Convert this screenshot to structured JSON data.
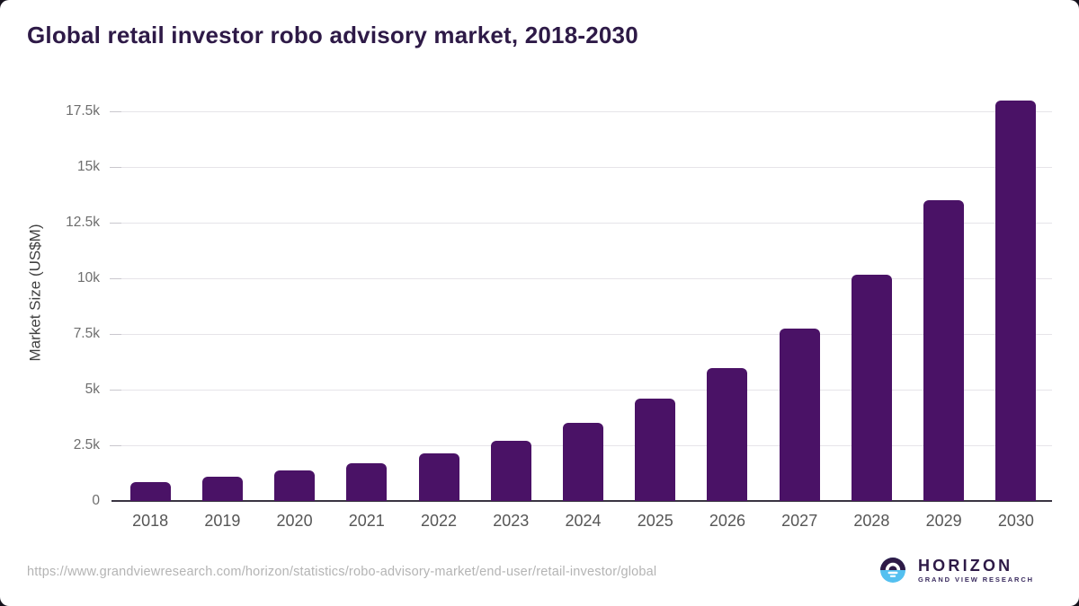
{
  "page": {
    "title": "Global retail investor robo advisory market, 2018-2030"
  },
  "chart_data": {
    "type": "bar",
    "title": "Global retail investor robo advisory market, 2018-2030",
    "categories": [
      "2018",
      "2019",
      "2020",
      "2021",
      "2022",
      "2023",
      "2024",
      "2025",
      "2026",
      "2027",
      "2028",
      "2029",
      "2030"
    ],
    "values": [
      850,
      1080,
      1370,
      1680,
      2150,
      2700,
      3500,
      4600,
      5950,
      7750,
      10150,
      13500,
      18000
    ],
    "units": "US$M",
    "xlabel": "",
    "ylabel": "Market Size (US$M)",
    "ylim": [
      0,
      18750
    ],
    "ytick_values": [
      0,
      2500,
      5000,
      7500,
      10000,
      12500,
      15000,
      17500
    ],
    "ytick_labels": [
      "0",
      "2.5k",
      "5k",
      "7.5k",
      "10k",
      "12.5k",
      "15k",
      "17.5k"
    ],
    "grid": true,
    "legend": false,
    "bar_color": "#4a1266"
  },
  "footer": {
    "source_url": "https://www.grandviewresearch.com/horizon/statistics/robo-advisory-market/end-user/retail-investor/global",
    "brand": {
      "name": "HORIZON",
      "tagline": "GRAND VIEW RESEARCH",
      "logo_icon": "horizon-sunrise-icon",
      "logo_top_color": "#2e1a47",
      "logo_bottom_color": "#54c0f0"
    }
  },
  "colors": {
    "background": "#ffffff",
    "title": "#2e1a47",
    "bar": "#4a1266",
    "gridline": "#e6e4e9",
    "axis_line": "#3a3442",
    "y_tick_text": "#6e6e6e",
    "x_tick_text": "#565656",
    "url_text": "#b4b4b4"
  }
}
